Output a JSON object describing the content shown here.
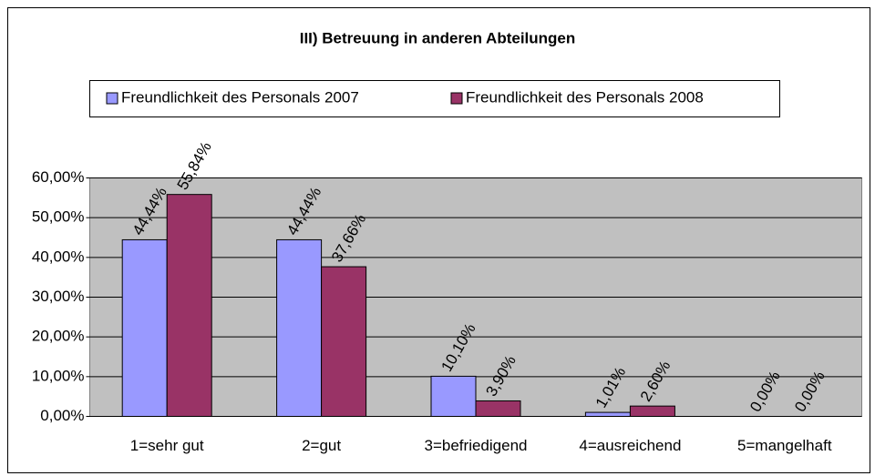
{
  "chart_data": {
    "type": "bar",
    "title": "III) Betreuung in anderen Abteilungen",
    "categories": [
      "1=sehr gut",
      "2=gut",
      "3=befriedigend",
      "4=ausreichend",
      "5=mangelhaft"
    ],
    "series": [
      {
        "name": "Freundlichkeit des Personals 2007",
        "color": "#9999ff",
        "values": [
          44.44,
          44.44,
          10.1,
          1.01,
          0.0
        ],
        "value_labels": [
          "44,44%",
          "44,44%",
          "10,10%",
          "1,01%",
          "0,00%"
        ]
      },
      {
        "name": "Freundlichkeit des Personals 2008",
        "color": "#993366",
        "values": [
          55.84,
          37.66,
          3.9,
          2.6,
          0.0
        ],
        "value_labels": [
          "55,84%",
          "37,66%",
          "3,90%",
          "2,60%",
          "0,00%"
        ]
      }
    ],
    "ylim": [
      0,
      60
    ],
    "yticks": [
      {
        "value": 0,
        "label": "0,00%"
      },
      {
        "value": 10,
        "label": "10,00%"
      },
      {
        "value": 20,
        "label": "20,00%"
      },
      {
        "value": 30,
        "label": "30,00%"
      },
      {
        "value": 40,
        "label": "40,00%"
      },
      {
        "value": 50,
        "label": "50,00%"
      },
      {
        "value": 60,
        "label": "60,00%"
      }
    ],
    "grid": true,
    "legend": "top"
  }
}
